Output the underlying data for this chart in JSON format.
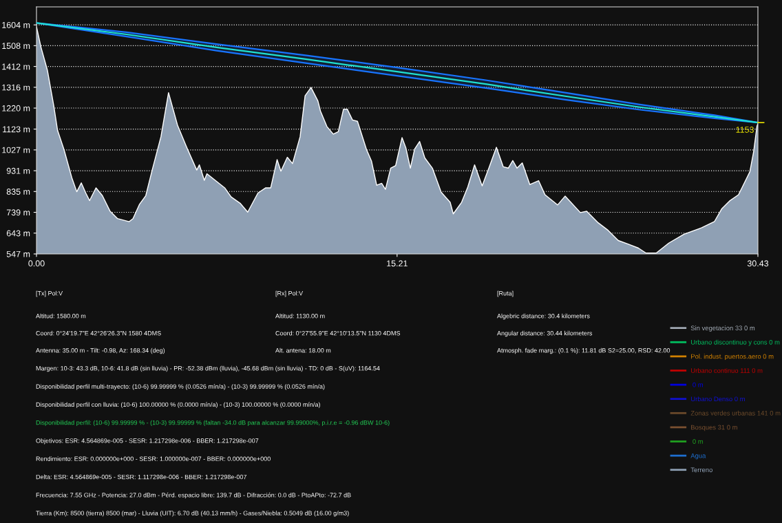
{
  "chart_data": {
    "type": "area",
    "xlim": [
      0,
      30.43
    ],
    "xticks": [
      {
        "value": 0,
        "label": "0.00"
      },
      {
        "value": 15.21,
        "label": "15.21"
      },
      {
        "value": 30.43,
        "label": "30.43"
      }
    ],
    "ylim": [
      547,
      1687
    ],
    "yticks": [
      {
        "value": 547,
        "label": "547 m"
      },
      {
        "value": 643,
        "label": "643 m"
      },
      {
        "value": 739,
        "label": "739 m"
      },
      {
        "value": 835,
        "label": "835 m"
      },
      {
        "value": 931,
        "label": "931 m"
      },
      {
        "value": 1027,
        "label": "1027 m"
      },
      {
        "value": 1123,
        "label": "1123 m"
      },
      {
        "value": 1220,
        "label": "1220 m"
      },
      {
        "value": 1316,
        "label": "1316 m"
      },
      {
        "value": 1412,
        "label": "1412 m"
      },
      {
        "value": 1508,
        "label": "1508 m"
      },
      {
        "value": 1604,
        "label": "1604 m"
      }
    ],
    "grid": "y",
    "legend": "bottom right",
    "series": [
      {
        "name": "Sin vegetacion 33 0 m",
        "color": "#a0a8b2",
        "type": "line"
      },
      {
        "name": "Urbano discontinuo y cons 0 m",
        "color": "#00c060",
        "type": "line"
      },
      {
        "name": "Pol. indust. puertos.aero 0 m",
        "color": "#d08000",
        "type": "line"
      },
      {
        "name": "Urbano continuo 111 0 m",
        "color": "#c00000",
        "type": "line"
      },
      {
        "name": " 0 m",
        "color": "#0000e0",
        "type": "line"
      },
      {
        "name": "Urbano Denso 0 m",
        "color": "#1010d0",
        "type": "line"
      },
      {
        "name": "Zonas verdes urbanas 141 0 m",
        "color": "#6b4a2a",
        "type": "line"
      },
      {
        "name": "Bosques 31 0 m",
        "color": "#7a5030",
        "type": "line"
      },
      {
        "name": " 0 m",
        "color": "#20a020",
        "type": "line"
      },
      {
        "name": "Agua",
        "color": "#1e6fd0",
        "type": "line"
      },
      {
        "name": "Terreno",
        "color": "#8fa0b4",
        "x": [
          0,
          0.19,
          0.46,
          0.73,
          0.89,
          1.16,
          1.49,
          1.7,
          1.89,
          2.08,
          2.24,
          2.51,
          2.78,
          3.1,
          3.42,
          3.91,
          4.07,
          4.34,
          4.61,
          4.88,
          5.25,
          5.57,
          5.95,
          6.33,
          6.76,
          6.87,
          7.08,
          7.19,
          7.73,
          7.94,
          8.21,
          8.59,
          8.91,
          9.34,
          9.67,
          9.88,
          10.15,
          10.31,
          10.58,
          10.8,
          11.12,
          11.33,
          11.58,
          11.87,
          11.98,
          12.25,
          12.52,
          12.73,
          12.95,
          13.11,
          13.33,
          13.54,
          13.92,
          14.13,
          14.35,
          14.56,
          14.72,
          14.94,
          15.15,
          15.42,
          15.58,
          15.77,
          15.95,
          16.16,
          16.38,
          16.7,
          17.07,
          17.45,
          17.58,
          17.93,
          18.19,
          18.48,
          18.8,
          19.1,
          19.4,
          19.69,
          19.9,
          20.09,
          20.27,
          20.49,
          20.81,
          21.18,
          21.45,
          21.98,
          22.3,
          22.94,
          23.21,
          23.69,
          24.11,
          24.54,
          24.97,
          25.39,
          25.71,
          26.14,
          26.67,
          27.31,
          28.06,
          28.6,
          28.91,
          29.23,
          29.61,
          29.77,
          30.09,
          30.25,
          30.39,
          30.43
        ],
        "values": [
          1596,
          1501,
          1395,
          1230,
          1117,
          1029,
          899,
          834,
          875,
          828,
          793,
          852,
          816,
          745,
          710,
          696,
          710,
          775,
          816,
          934,
          1088,
          1291,
          1141,
          1041,
          934,
          958,
          887,
          917,
          870,
          852,
          810,
          781,
          740,
          828,
          852,
          852,
          982,
          929,
          993,
          964,
          1088,
          1277,
          1315,
          1253,
          1206,
          1135,
          1100,
          1111,
          1215,
          1215,
          1165,
          1159,
          1029,
          976,
          864,
          873,
          845,
          943,
          955,
          1084,
          1037,
          943,
          1031,
          1066,
          990,
          943,
          832,
          785,
          732,
          785,
          855,
          958,
          861,
          949,
          1039,
          949,
          943,
          978,
          943,
          967,
          867,
          885,
          820,
          773,
          814,
          738,
          744,
          691,
          656,
          609,
          592,
          574,
          551,
          551,
          597,
          638,
          668,
          697,
          756,
          791,
          820,
          855,
          926,
          1019,
          1136,
          1148
        ]
      },
      {
        "color": "#20e0d0",
        "type": "line",
        "x": [
          0,
          3.8,
          7.6,
          11.4,
          15.21,
          19,
          22.3,
          25.4,
          28.6,
          30.43
        ],
        "values": [
          1613,
          1560,
          1500,
          1445,
          1388,
          1330,
          1275,
          1225,
          1180,
          1153
        ],
        "upper": [
          1613,
          1570,
          1515,
          1463,
          1407,
          1348,
          1291,
          1237,
          1187,
          1153
        ],
        "lower": [
          1613,
          1550,
          1485,
          1427,
          1369,
          1312,
          1259,
          1213,
          1173,
          1153
        ]
      }
    ],
    "annotations": [
      {
        "text": "1153",
        "x": 30.43,
        "y": 1153
      },
      "[Tx] Pol:V",
      "[Rx] Pol:V",
      "[Ruta]",
      "Altitud: 1580.00 m",
      "Altitud: 1130.00 m",
      "Algebric distance: 30.4 kilometers",
      "Coord: 0°24'19.7\"E 42°26'26.3\"N 1580 4DMS",
      "Coord: 0°27'55.9\"E 42°10'13.5\"N 1130 4DMS",
      "Angular distance: 30.44 kilometers",
      "Antenna: 35.00 m - Tilt: -0.98, Az: 168.34 (deg)",
      "Alt. antena: 18.00 m",
      "Atmosph. fade marg.: (0.1 %): 11.81 dB S2=25.00, RSD: 42.00",
      "Margen: 10-3: 43.3 dB, 10-6: 41.8 dB (sin lluvia) - PR: -52.38 dBm (lluvia), -45.68 dBm (sin lluvia) - TD: 0 dB - S(uV): 1164.54",
      "Disponibilidad perfil multi-trayecto: (10-6) 99.99999 % (0.0526 mín/a) - (10-3) 99.99999 % (0.0526 mín/a)",
      "Disponibilidad perfil con lluvia: (10-6) 100.00000 % (0.0000 mín/a) - (10-3) 100.00000 % (0.0000 mín/a)",
      "Disponibilidad perfil: (10-6) 99.99999 % - (10-3) 99.99999 % (faltan -34.0 dB para alcanzar 99.99000%, p.i.r.e = -0.96 dBW 10-6)",
      "Objetivos: ESR: 4.564869e-005 - SESR: 1.217298e-006 - BBER: 1.217298e-007",
      "Rendimiento: ESR: 0.000000e+000 - SESR: 1.000000e-007 - BBER: 0.000000e+000",
      "Delta: ESR: 4.564869e-005 - SESR: 1.117298e-006 - BBER: 1.217298e-007",
      "Frecuencia: 7.55 GHz - Potencia: 27.0 dBm - Pérd. espacio libre: 139.7 dB - Difracción: 0.0 dB - PtoAPto: -72.7 dB",
      "Tierra (Km): 8500 (tierra) 8500 (mar) - Lluvia (UIT): 6.70 dB (40.13 mm/h) - Gases/Niebla: 0.5049 dB (16.00 g/m3)"
    ]
  }
}
